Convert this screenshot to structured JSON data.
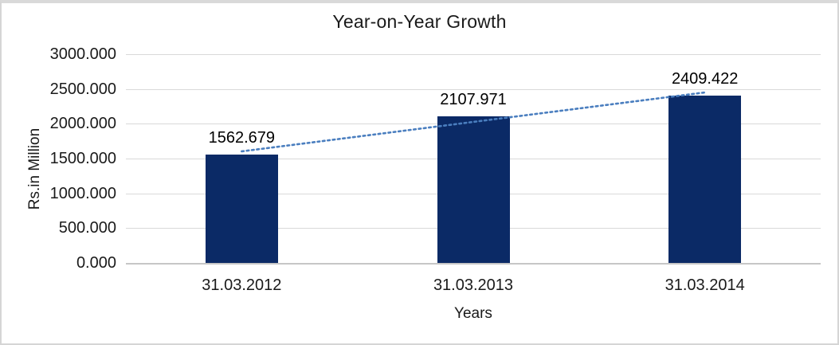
{
  "chart": {
    "title": "Year-on-Year Growth",
    "y_axis": {
      "title": "Rs.in Million"
    },
    "x_axis": {
      "title": "Years"
    }
  },
  "chart_data": {
    "type": "bar",
    "title": "Year-on-Year Growth",
    "categories": [
      "31.03.2012",
      "31.03.2013",
      "31.03.2014"
    ],
    "values": [
      1562.679,
      2107.971,
      2409.422
    ],
    "data_labels": [
      "1562.679",
      "2107.971",
      "2409.422"
    ],
    "xlabel": "Years",
    "ylabel": "Rs.in Million",
    "ylim": [
      0,
      3000
    ],
    "ytick_step": 500,
    "ytick_labels": [
      "0.000",
      "500.000",
      "1000.000",
      "1500.000",
      "2000.000",
      "2500.000",
      "3000.000"
    ],
    "grid": true,
    "legend": false,
    "bar_color": "#0b2a66",
    "gridline_color": "#d9d9d9",
    "trendline": {
      "type": "linear",
      "style": "dotted",
      "color": "#4a7ebf",
      "values": [
        1603.32,
        2026.69,
        2450.06
      ]
    }
  }
}
